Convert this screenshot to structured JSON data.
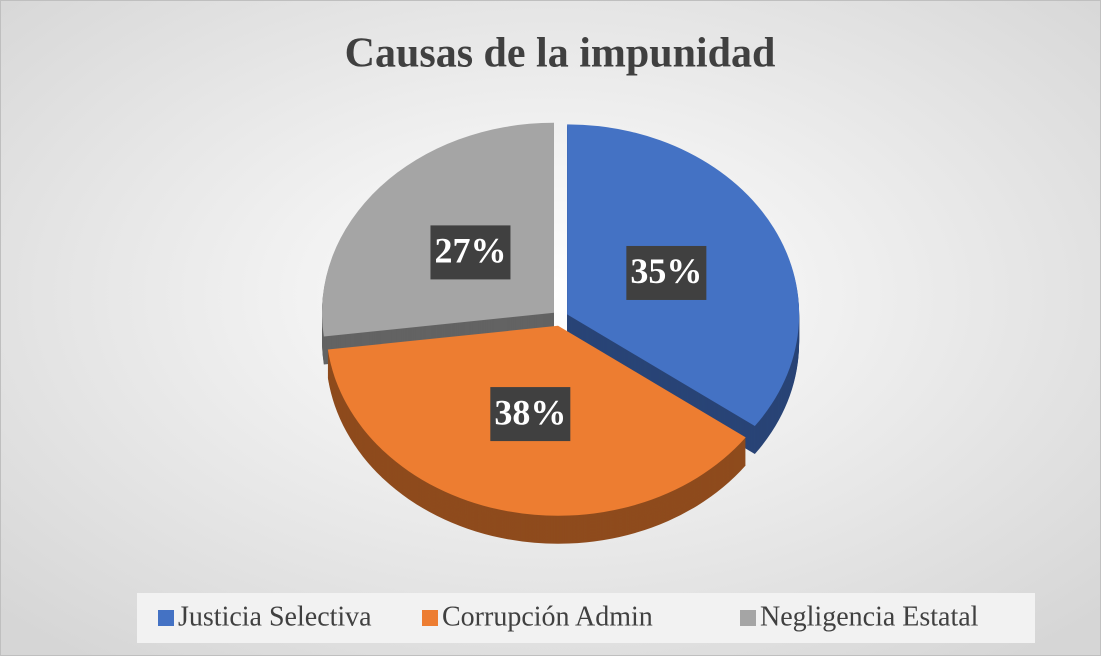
{
  "chart_data": {
    "type": "pie",
    "title": "Causas de la impunidad",
    "categories": [
      "Justicia Selectiva",
      "Corrupción Admin",
      "Negligencia Estatal"
    ],
    "values": [
      35,
      38,
      27
    ],
    "value_labels": [
      "35%",
      "38%",
      "27%"
    ],
    "colors": [
      "#4472c4",
      "#ed7d31",
      "#a5a5a5"
    ],
    "legend": "bottom"
  }
}
